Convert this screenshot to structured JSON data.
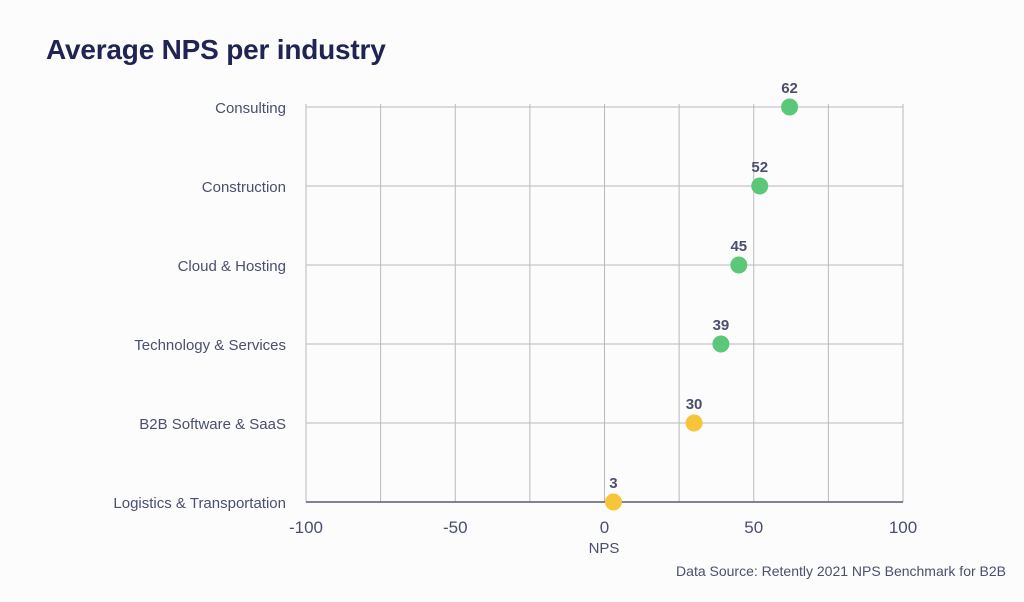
{
  "chart_data": {
    "type": "scatter",
    "title": "Average NPS per industry",
    "xlabel": "NPS",
    "ylabel": "",
    "xlim": [
      -100,
      100
    ],
    "x_ticks": [
      -100,
      -50,
      0,
      50,
      100
    ],
    "x_tick_labels": [
      "-100",
      "-50",
      "0",
      "50",
      "100"
    ],
    "grid": true,
    "categories": [
      "Consulting",
      "Construction",
      "Cloud & Hosting",
      "Technology & Services",
      "B2B Software & SaaS",
      "Logistics & Transportation"
    ],
    "values": [
      62,
      52,
      45,
      39,
      30,
      3
    ],
    "point_colors": [
      "#5ac878",
      "#5ac878",
      "#5ac878",
      "#5ac878",
      "#f6c53a",
      "#f6c53a"
    ],
    "data_labels": [
      "62",
      "52",
      "45",
      "39",
      "30",
      "3"
    ]
  },
  "source_note": "Data Source: Retently 2021 NPS Benchmark for B2B",
  "colors": {
    "title": "#1f2453",
    "axis_text": "#4a4f6e",
    "grid": "#b9b9b9",
    "axis_line": "#555a6e",
    "positive": "#5ac878",
    "neutral": "#f6c53a"
  }
}
